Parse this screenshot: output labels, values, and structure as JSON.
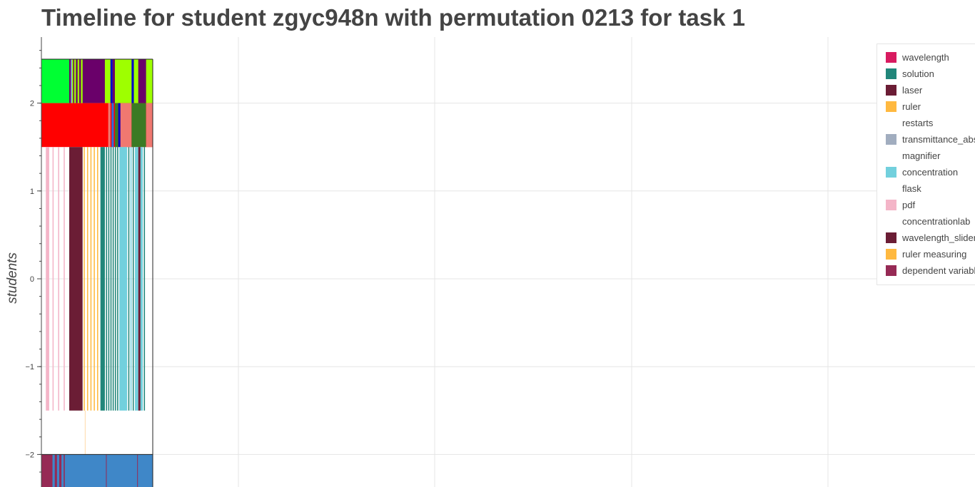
{
  "chart_data": {
    "type": "timeline",
    "title": "Timeline for student zgyc948n with permutation 0213 for task 1",
    "ylabel": "students",
    "ylim": [
      -2.4,
      2.8
    ],
    "yticks": [
      -2,
      -1,
      0,
      1,
      2
    ],
    "ytick_labels": [
      "−2",
      "−1",
      "0",
      "1",
      "2"
    ],
    "legend_position": "top-right",
    "grid": true,
    "legend": [
      {
        "label": "wavelength",
        "color": "#d81b60"
      },
      {
        "label": "solution",
        "color": "#21867a"
      },
      {
        "label": "laser",
        "color": "#6b1d35"
      },
      {
        "label": "ruler",
        "color": "#ffb940"
      },
      {
        "label": "restarts",
        "color": ""
      },
      {
        "label": "transmittance_abs",
        "color": "#a1adbf"
      },
      {
        "label": "magnifier",
        "color": ""
      },
      {
        "label": "concentration",
        "color": "#72d0dd"
      },
      {
        "label": "flask",
        "color": ""
      },
      {
        "label": "pdf",
        "color": "#f4b5c8"
      },
      {
        "label": "concentrationlab",
        "color": ""
      },
      {
        "label": "wavelength_slider",
        "color": "#6b1d35"
      },
      {
        "label": "ruler measuring",
        "color": "#ffb940"
      },
      {
        "label": "dependent variable",
        "color": "#962a55"
      }
    ],
    "rows": [
      {
        "name": "top-row",
        "y_range": [
          2.0,
          2.5
        ],
        "base_color": "#9eff00",
        "segments": [
          {
            "x": [
              0.0,
              0.25
            ],
            "color": "#00ff33"
          },
          {
            "x": [
              0.25,
              0.265
            ],
            "color": "#6a006a"
          },
          {
            "x": [
              0.265,
              0.275
            ],
            "color": "#7fa3e6"
          },
          {
            "x": [
              0.285,
              0.295
            ],
            "color": "#6a006a"
          },
          {
            "x": [
              0.31,
              0.325
            ],
            "color": "#6a006a"
          },
          {
            "x": [
              0.34,
              0.355
            ],
            "color": "#6a006a"
          },
          {
            "x": [
              0.37,
              0.57
            ],
            "color": "#6a006a"
          },
          {
            "x": [
              0.62,
              0.64
            ],
            "color": "#0000cc"
          },
          {
            "x": [
              0.64,
              0.66
            ],
            "color": "#6a006a"
          },
          {
            "x": [
              0.81,
              0.83
            ],
            "color": "#0000cc"
          },
          {
            "x": [
              0.87,
              0.94
            ],
            "color": "#6a006a"
          }
        ]
      },
      {
        "name": "second-row",
        "y_range": [
          1.5,
          2.0
        ],
        "base_color": "#ff0000",
        "segments": [
          {
            "x": [
              0.6,
              0.62
            ],
            "color": "#f07870"
          },
          {
            "x": [
              0.63,
              0.65
            ],
            "color": "#2c6edc"
          },
          {
            "x": [
              0.66,
              0.69
            ],
            "color": "#3b7a24"
          },
          {
            "x": [
              0.69,
              0.71
            ],
            "color": "#0000cc"
          },
          {
            "x": [
              0.71,
              0.81
            ],
            "color": "#f07870"
          },
          {
            "x": [
              0.81,
              0.94
            ],
            "color": "#3b7a24"
          },
          {
            "x": [
              0.94,
              1.0
            ],
            "color": "#f07870"
          }
        ]
      },
      {
        "name": "middle-row",
        "y_range": [
          -1.5,
          1.5
        ],
        "base_color": "",
        "segments": [
          {
            "x": [
              0.04,
              0.07
            ],
            "color": "#f4b5c8"
          },
          {
            "x": [
              0.1,
              0.11
            ],
            "color": "#f4b5c8"
          },
          {
            "x": [
              0.15,
              0.16
            ],
            "color": "#f4b5c8"
          },
          {
            "x": [
              0.2,
              0.21
            ],
            "color": "#f4b5c8"
          },
          {
            "x": [
              0.25,
              0.37
            ],
            "color": "#6b1d35"
          },
          {
            "x": [
              0.38,
              0.39
            ],
            "color": "#ffb940"
          },
          {
            "x": [
              0.41,
              0.42
            ],
            "color": "#ffb940"
          },
          {
            "x": [
              0.44,
              0.45
            ],
            "color": "#ffb940"
          },
          {
            "x": [
              0.47,
              0.48
            ],
            "color": "#ffb940"
          },
          {
            "x": [
              0.5,
              0.51
            ],
            "color": "#ffb940"
          },
          {
            "x": [
              0.53,
              0.57
            ],
            "color": "#21867a"
          },
          {
            "x": [
              0.58,
              0.59
            ],
            "color": "#21867a"
          },
          {
            "x": [
              0.6,
              0.61
            ],
            "color": "#21867a"
          },
          {
            "x": [
              0.62,
              0.63
            ],
            "color": "#21867a"
          },
          {
            "x": [
              0.64,
              0.65
            ],
            "color": "#21867a"
          },
          {
            "x": [
              0.66,
              0.67
            ],
            "color": "#21867a"
          },
          {
            "x": [
              0.68,
              0.69
            ],
            "color": "#21867a"
          },
          {
            "x": [
              0.7,
              0.77
            ],
            "color": "#72d0dd"
          },
          {
            "x": [
              0.78,
              0.79
            ],
            "color": "#21867a"
          },
          {
            "x": [
              0.8,
              0.81
            ],
            "color": "#72d0dd"
          },
          {
            "x": [
              0.82,
              0.83
            ],
            "color": "#21867a"
          },
          {
            "x": [
              0.84,
              0.87
            ],
            "color": "#72d0dd"
          },
          {
            "x": [
              0.87,
              0.89
            ],
            "color": "#6b1d35"
          },
          {
            "x": [
              0.89,
              0.91
            ],
            "color": "#72d0dd"
          },
          {
            "x": [
              0.92,
              0.93
            ],
            "color": "#21867a"
          }
        ]
      },
      {
        "name": "gap-row",
        "y_range": [
          -2.0,
          -1.5
        ],
        "base_color": "",
        "segments": [
          {
            "x": [
              0.39,
              0.395
            ],
            "color": "#ffd9a8"
          }
        ]
      },
      {
        "name": "bottom-row",
        "y_range": [
          -2.4,
          -2.0
        ],
        "base_color": "#3f87c8",
        "segments": [
          {
            "x": [
              0.0,
              0.1
            ],
            "color": "#962a55"
          },
          {
            "x": [
              0.1,
              0.12
            ],
            "color": "#3f87c8"
          },
          {
            "x": [
              0.12,
              0.14
            ],
            "color": "#962a55"
          },
          {
            "x": [
              0.15,
              0.16
            ],
            "color": "#3f87c8"
          },
          {
            "x": [
              0.16,
              0.18
            ],
            "color": "#962a55"
          },
          {
            "x": [
              0.19,
              0.2
            ],
            "color": "#3f87c8"
          },
          {
            "x": [
              0.2,
              0.21
            ],
            "color": "#962a55"
          },
          {
            "x": [
              0.58,
              0.585
            ],
            "color": "#962a55"
          },
          {
            "x": [
              0.86,
              0.865
            ],
            "color": "#962a55"
          }
        ]
      }
    ]
  }
}
